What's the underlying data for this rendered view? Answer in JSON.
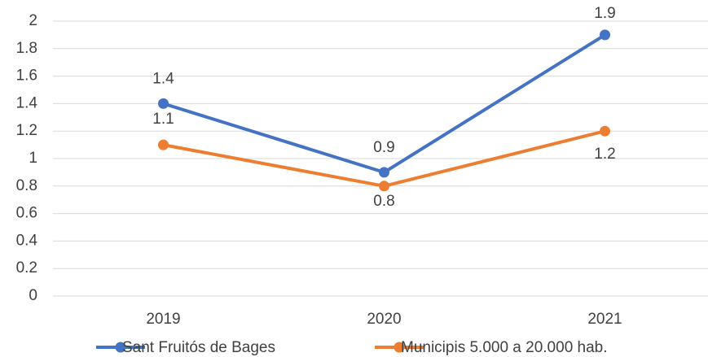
{
  "chart_data": {
    "type": "line",
    "categories": [
      "2019",
      "2020",
      "2021"
    ],
    "series": [
      {
        "name": "Sant Fruitós de Bages",
        "color": "#4472c4",
        "values": [
          1.4,
          0.9,
          1.9
        ]
      },
      {
        "name": "Municipis 5.000 a 20.000 hab.",
        "color": "#ed7d31",
        "values": [
          1.1,
          0.8,
          1.2
        ]
      }
    ],
    "ylim": [
      0,
      2
    ],
    "yticks": [
      0,
      0.2,
      0.4,
      0.6,
      0.8,
      1,
      1.2,
      1.4,
      1.6,
      1.8,
      2
    ],
    "grid": true,
    "legend": "bottom"
  }
}
